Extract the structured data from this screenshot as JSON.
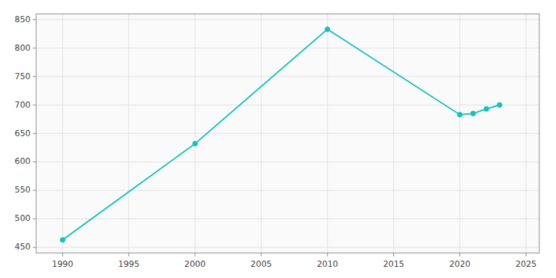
{
  "chart_data": {
    "type": "line",
    "x": [
      1990,
      2000,
      2010,
      2020,
      2021,
      2022,
      2023
    ],
    "values": [
      463,
      632,
      833,
      683,
      685,
      693,
      700
    ],
    "color": "#1abfbf",
    "marker": "circle",
    "xlim": [
      1988,
      2026
    ],
    "ylim": [
      440,
      860
    ],
    "xticks": [
      1990,
      1995,
      2000,
      2005,
      2010,
      2015,
      2020,
      2025
    ],
    "yticks": [
      450,
      500,
      550,
      600,
      650,
      700,
      750,
      800,
      850
    ],
    "grid": true
  }
}
